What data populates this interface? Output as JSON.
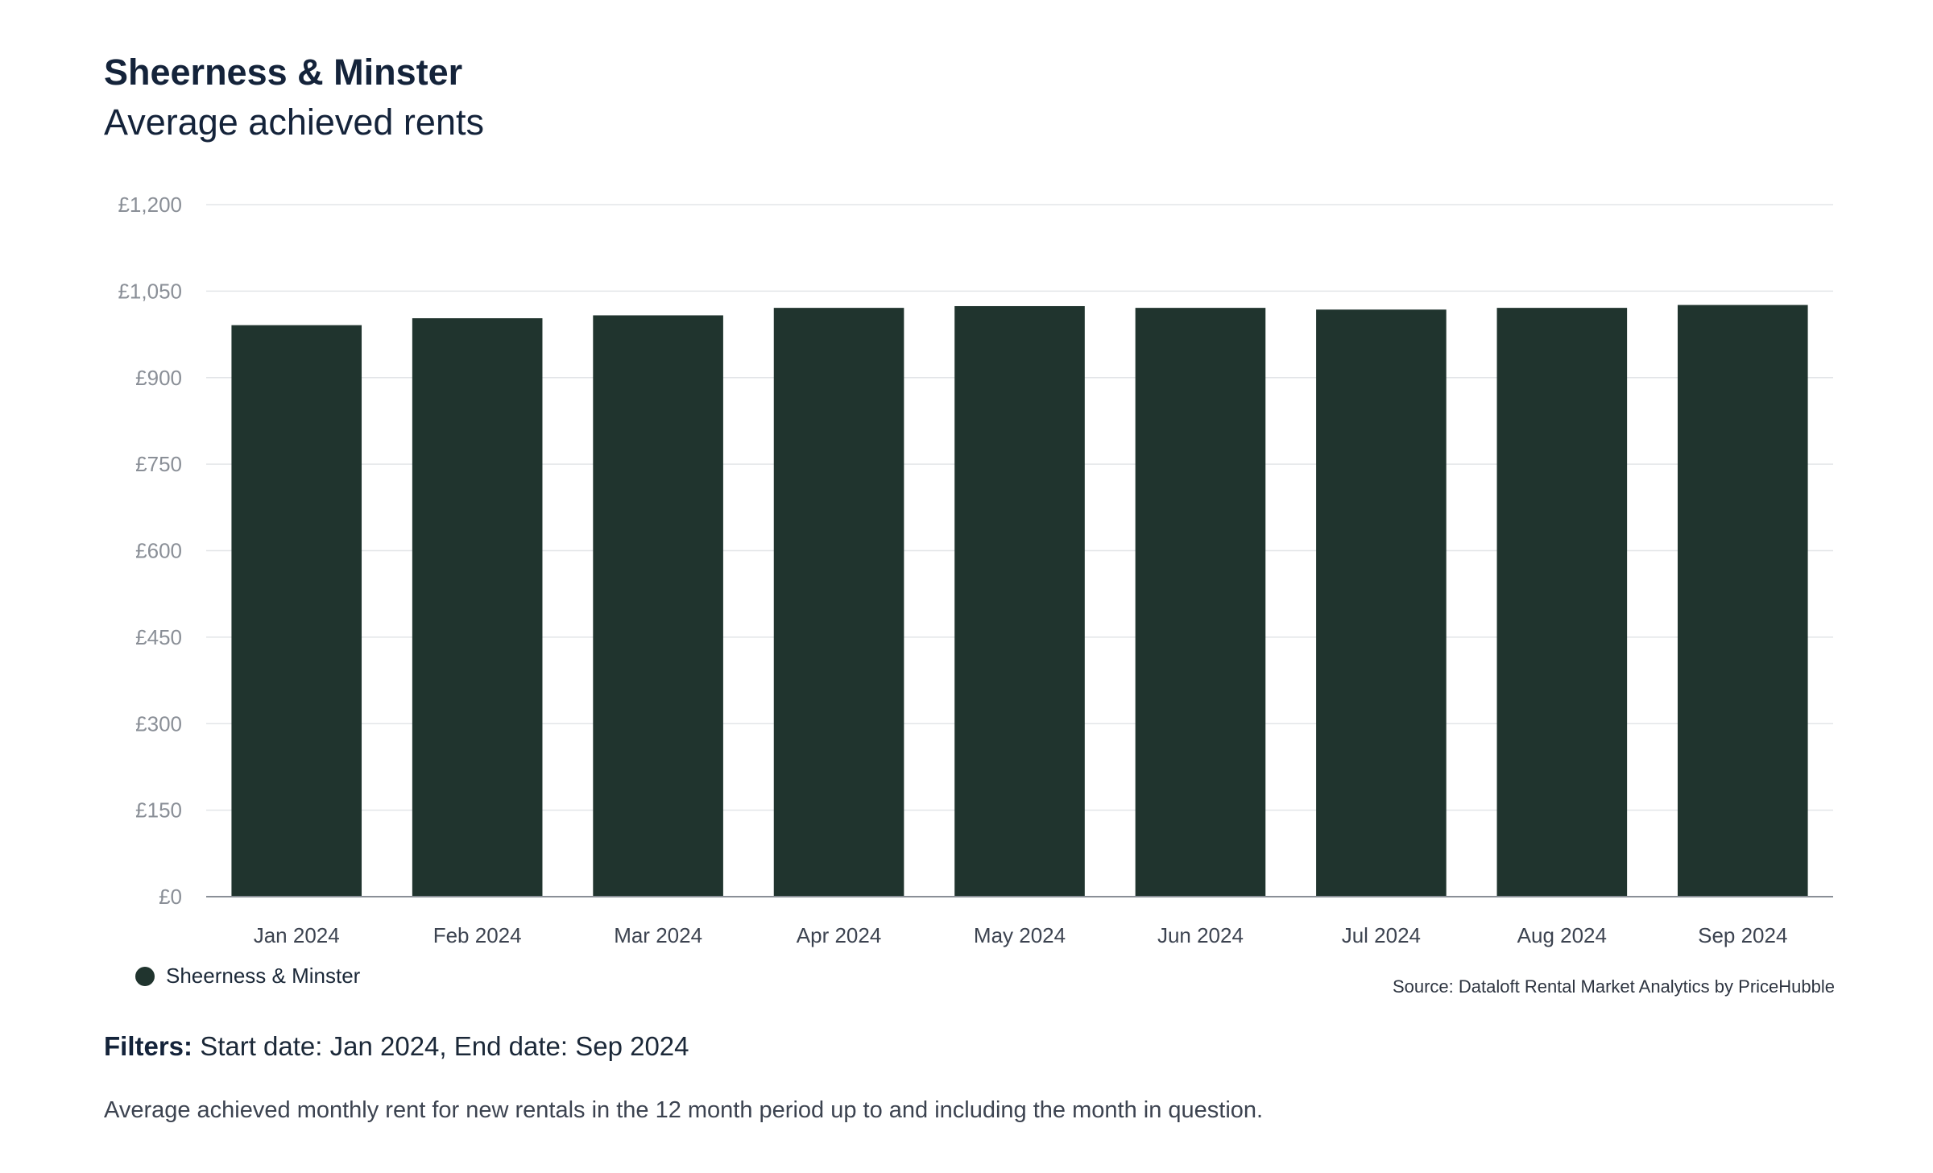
{
  "header": {
    "title": "Sheerness & Minster",
    "subtitle": "Average achieved rents"
  },
  "chart_data": {
    "type": "bar",
    "categories": [
      "Jan 2024",
      "Feb 2024",
      "Mar 2024",
      "Apr 2024",
      "May 2024",
      "Jun 2024",
      "Jul 2024",
      "Aug 2024",
      "Sep 2024"
    ],
    "series": [
      {
        "name": "Sheerness & Minster",
        "color": "#20342e",
        "values": [
          991,
          1003,
          1008,
          1021,
          1024,
          1021,
          1018,
          1021,
          1026
        ]
      }
    ],
    "ylim": [
      0,
      1200
    ],
    "yticks": [
      0,
      150,
      300,
      450,
      600,
      750,
      900,
      1050,
      1200
    ],
    "ytick_labels": [
      "£0",
      "£150",
      "£300",
      "£450",
      "£600",
      "£750",
      "£900",
      "£1,050",
      "£1,200"
    ],
    "grid": true,
    "legend_position": "bottom-left"
  },
  "legend": {
    "label": "Sheerness & Minster",
    "color": "#20342e"
  },
  "source": "Source: Dataloft Rental Market Analytics by PriceHubble",
  "filters": {
    "label": "Filters:",
    "text": "Start date: Jan 2024, End date: Sep 2024"
  },
  "footnote": "Average achieved monthly rent for new rentals in the 12 month period up to and including the month in question."
}
